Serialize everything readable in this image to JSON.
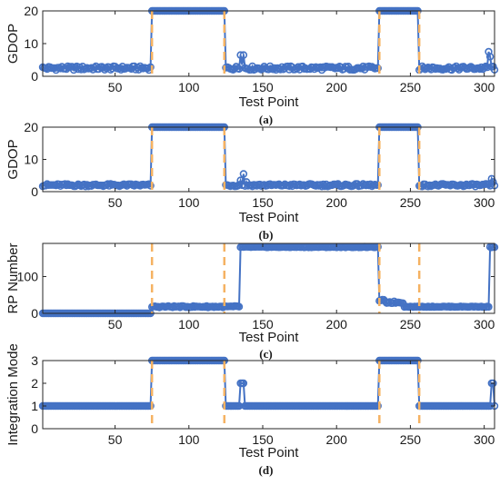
{
  "figure": {
    "series_color": "#4472c4",
    "marker_color": "#4472c4",
    "boundary_color": "#f5b262"
  },
  "chart_data": [
    {
      "type": "line",
      "panel_label": "(a)",
      "xlabel": "Test Point",
      "ylabel": "GDOP",
      "xlim": [
        1,
        307
      ],
      "ylim": [
        0,
        20
      ],
      "xticks": [
        50,
        100,
        150,
        200,
        250,
        300
      ],
      "yticks": [
        0,
        10,
        20
      ],
      "segments": [
        {
          "x": [
            1,
            74
          ],
          "baseline": 2.5,
          "jitter": 0.6
        },
        {
          "x": [
            75,
            124
          ],
          "baseline": 20,
          "jitter": 0
        },
        {
          "x": [
            125,
            228
          ],
          "baseline": 2.5,
          "jitter": 0.6
        },
        {
          "x": [
            229,
            255
          ],
          "baseline": 20,
          "jitter": 0
        },
        {
          "x": [
            256,
            307
          ],
          "baseline": 2.5,
          "jitter": 0.6
        }
      ],
      "spikes": [
        {
          "x": 135,
          "y": 6.5
        },
        {
          "x": 136,
          "y": 3.5
        },
        {
          "x": 137,
          "y": 6.5
        },
        {
          "x": 303,
          "y": 7.5
        },
        {
          "x": 304,
          "y": 6
        },
        {
          "x": 306,
          "y": 3
        }
      ],
      "boundaries": [
        75,
        124,
        229,
        256
      ],
      "grid": false
    },
    {
      "type": "line",
      "panel_label": "(b)",
      "xlabel": "Test Point",
      "ylabel": "GDOP",
      "xlim": [
        1,
        307
      ],
      "ylim": [
        0,
        20
      ],
      "xticks": [
        50,
        100,
        150,
        200,
        250,
        300
      ],
      "yticks": [
        0,
        10,
        20
      ],
      "segments": [
        {
          "x": [
            1,
            74
          ],
          "baseline": 2,
          "jitter": 0.4
        },
        {
          "x": [
            75,
            124
          ],
          "baseline": 20,
          "jitter": 0
        },
        {
          "x": [
            125,
            228
          ],
          "baseline": 2,
          "jitter": 0.4
        },
        {
          "x": [
            229,
            255
          ],
          "baseline": 20,
          "jitter": 0
        },
        {
          "x": [
            256,
            307
          ],
          "baseline": 2,
          "jitter": 0.4
        }
      ],
      "spikes": [
        {
          "x": 135,
          "y": 3.5
        },
        {
          "x": 137,
          "y": 5.5
        },
        {
          "x": 139,
          "y": 3
        },
        {
          "x": 305,
          "y": 4
        },
        {
          "x": 306,
          "y": 3
        }
      ],
      "boundaries": [
        75,
        124,
        229,
        256
      ],
      "grid": false
    },
    {
      "type": "line",
      "panel_label": "(c)",
      "xlabel": "Test Point",
      "ylabel": "RP Number",
      "xlim": [
        1,
        307
      ],
      "ylim": [
        0,
        190
      ],
      "xticks": [
        50,
        100,
        150,
        200,
        250,
        300
      ],
      "yticks": [
        0,
        100
      ],
      "segments": [
        {
          "x": [
            1,
            74
          ],
          "baseline": 0,
          "jitter": 0
        },
        {
          "x": [
            75,
            134
          ],
          "baseline": 18,
          "jitter": 2
        },
        {
          "x": [
            135,
            228
          ],
          "baseline": 180,
          "jitter": 1
        },
        {
          "x": [
            229,
            232
          ],
          "baseline": 35,
          "jitter": 2
        },
        {
          "x": [
            233,
            245
          ],
          "baseline": 30,
          "jitter": 3
        },
        {
          "x": [
            246,
            303
          ],
          "baseline": 18,
          "jitter": 1
        },
        {
          "x": [
            304,
            307
          ],
          "baseline": 180,
          "jitter": 1
        }
      ],
      "spikes": [],
      "boundaries": [
        75,
        124,
        229,
        256
      ],
      "grid": false
    },
    {
      "type": "line",
      "panel_label": "(d)",
      "xlabel": "Test Point",
      "ylabel": "Integration Mode",
      "xlim": [
        1,
        307
      ],
      "ylim": [
        0,
        3
      ],
      "xticks": [
        50,
        100,
        150,
        200,
        250,
        300
      ],
      "yticks": [
        0,
        1,
        2,
        3
      ],
      "segments": [
        {
          "x": [
            1,
            74
          ],
          "baseline": 1,
          "jitter": 0
        },
        {
          "x": [
            75,
            124
          ],
          "baseline": 3,
          "jitter": 0
        },
        {
          "x": [
            125,
            228
          ],
          "baseline": 1,
          "jitter": 0
        },
        {
          "x": [
            229,
            255
          ],
          "baseline": 3,
          "jitter": 0
        },
        {
          "x": [
            256,
            307
          ],
          "baseline": 1,
          "jitter": 0
        }
      ],
      "spikes": [
        {
          "x": 135,
          "y": 2
        },
        {
          "x": 136,
          "y": 2
        },
        {
          "x": 137,
          "y": 2
        },
        {
          "x": 305,
          "y": 2
        },
        {
          "x": 306,
          "y": 2
        }
      ],
      "boundaries": [
        75,
        124,
        229,
        256
      ],
      "grid": false
    }
  ]
}
